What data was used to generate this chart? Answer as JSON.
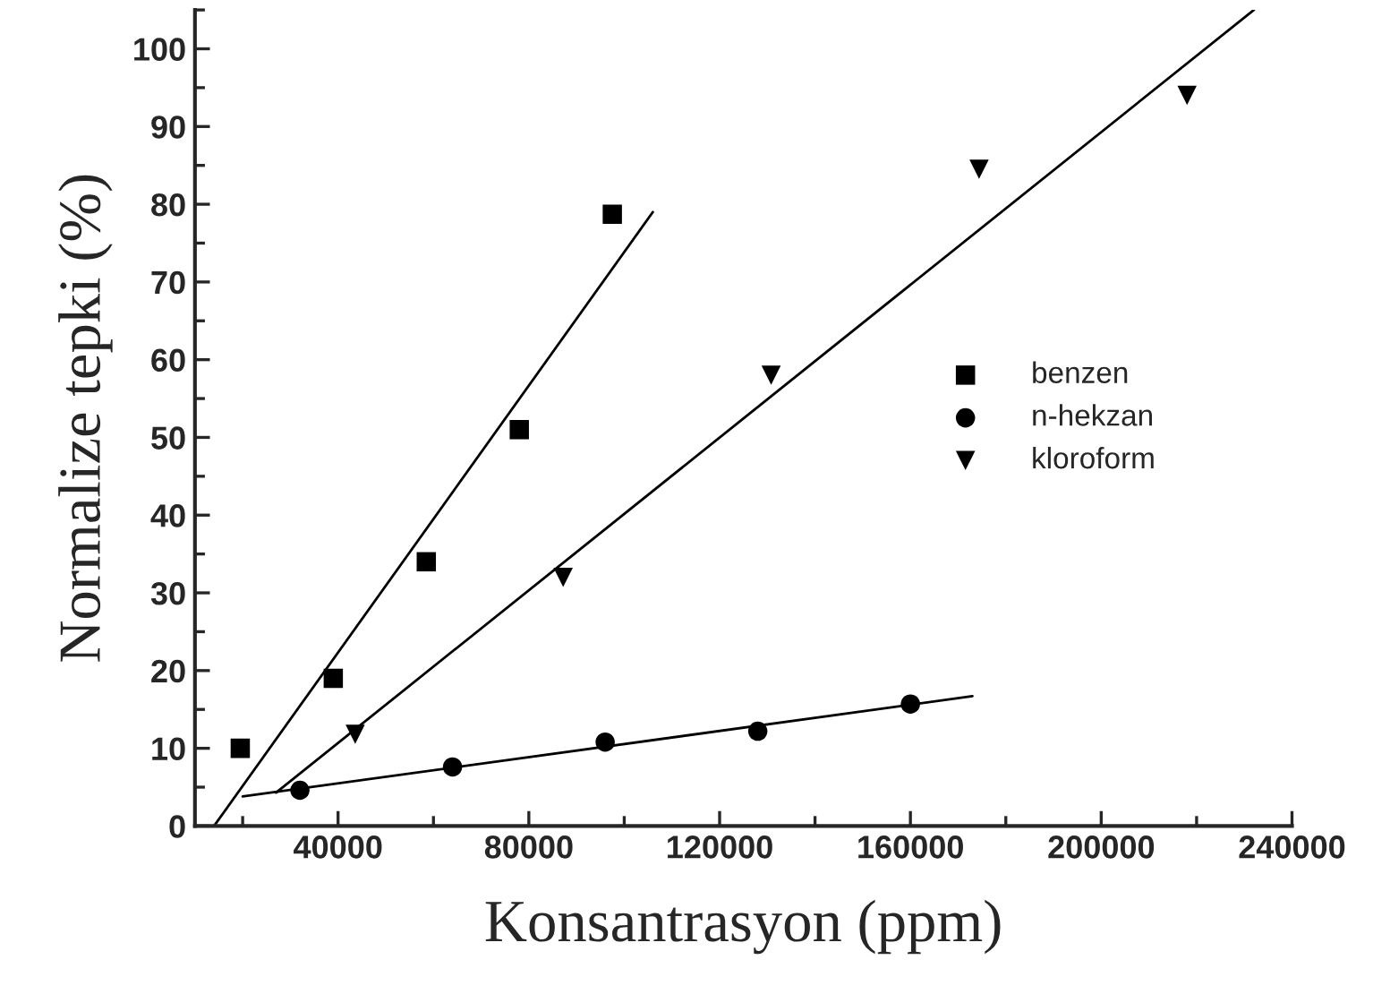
{
  "chart_data": {
    "type": "scatter",
    "xlabel": "Konsantrasyon (ppm)",
    "ylabel": "Normalize tepki (%)",
    "xlim": [
      10000,
      240000
    ],
    "xticks": [
      40000,
      80000,
      120000,
      160000,
      200000,
      240000
    ],
    "ylim": [
      0,
      105
    ],
    "yticks": [
      0,
      10,
      20,
      30,
      40,
      50,
      60,
      70,
      80,
      90,
      100
    ],
    "grid": false,
    "legend": "right",
    "series": [
      {
        "name": "benzen",
        "color": "#000000",
        "marker": "square",
        "x": [
          19500,
          39000,
          58500,
          78000,
          97500
        ],
        "values": [
          10,
          19,
          34,
          51,
          78.7
        ]
      },
      {
        "name": "n-hekzan",
        "color": "#000000",
        "marker": "circle",
        "x": [
          32000,
          64000,
          96000,
          128000,
          160000
        ],
        "values": [
          4.6,
          7.6,
          10.8,
          12.2,
          15.7
        ]
      },
      {
        "name": "kloroform",
        "color": "#000000",
        "marker": "triangle",
        "x": [
          43600,
          87200,
          130800,
          174400,
          218000
        ],
        "values": [
          11.8,
          32,
          58,
          84.5,
          94
        ]
      },
      {
        "type": "line",
        "color": "#000000",
        "x": [
          14000,
          106000
        ],
        "values": [
          0,
          79
        ]
      },
      {
        "type": "line",
        "color": "#000000",
        "x": [
          27000,
          232000
        ],
        "values": [
          4.3,
          105
        ]
      },
      {
        "type": "line",
        "color": "#000000",
        "x": [
          20000,
          173000
        ],
        "values": [
          3.8,
          16.7
        ]
      }
    ]
  }
}
